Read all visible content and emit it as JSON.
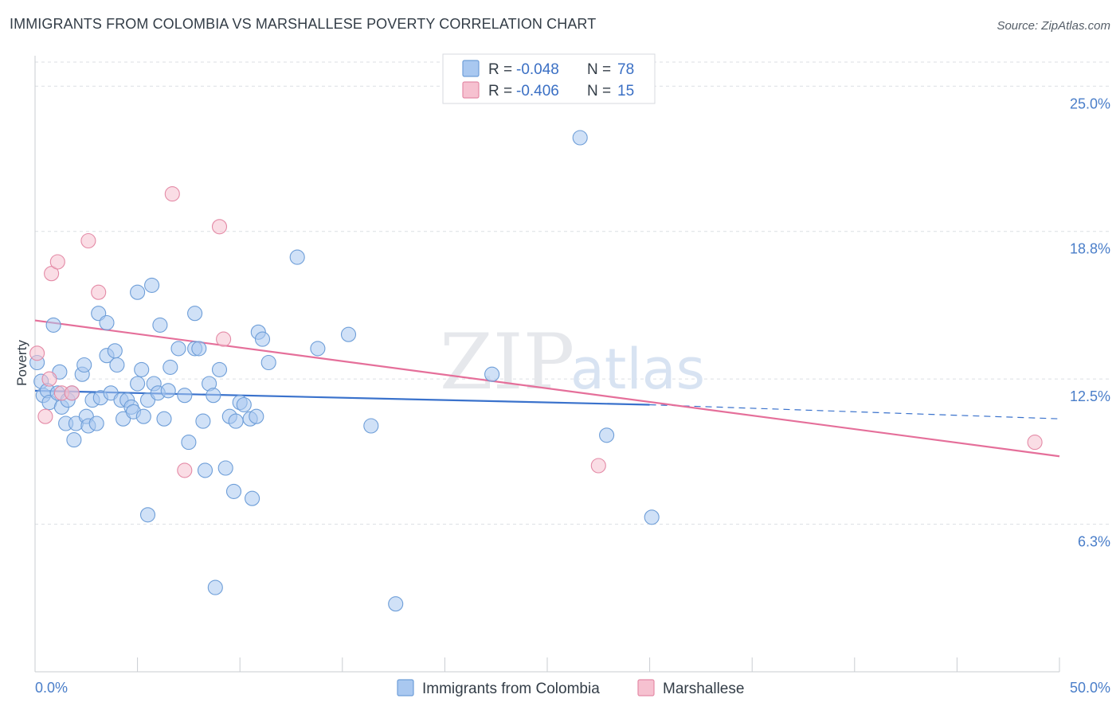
{
  "header": {
    "title": "IMMIGRANTS FROM COLOMBIA VS MARSHALLESE POVERTY CORRELATION CHART",
    "source": "Source: ZipAtlas.com"
  },
  "watermark": {
    "zip": "ZIP",
    "atlas": "atlas"
  },
  "stats": [
    {
      "r_label": "R = ",
      "r": "-0.048",
      "n_label": "N = ",
      "n": "78",
      "color": "#a9c8f0",
      "stroke": "#6e9ed8"
    },
    {
      "r_label": "R = ",
      "r": "-0.406",
      "n_label": "N = ",
      "n": "15",
      "color": "#f6c1d0",
      "stroke": "#e48aa6"
    }
  ],
  "legend": [
    {
      "label": "Immigrants from Colombia",
      "color": "#a9c8f0",
      "stroke": "#6e9ed8"
    },
    {
      "label": "Marshallese",
      "color": "#f6c1d0",
      "stroke": "#e48aa6"
    }
  ],
  "chart_data": {
    "type": "scatter",
    "title": "IMMIGRANTS FROM COLOMBIA VS MARSHALLESE POVERTY CORRELATION CHART",
    "xlabel": "",
    "ylabel": "Poverty",
    "xlim": [
      0,
      50
    ],
    "ylim": [
      0,
      26.3
    ],
    "x_tick_labels": [
      "0.0%",
      "50.0%"
    ],
    "y_ticks": [
      {
        "value": 6.3,
        "label": "6.3%"
      },
      {
        "value": 12.5,
        "label": "12.5%"
      },
      {
        "value": 18.8,
        "label": "18.8%"
      },
      {
        "value": 25.0,
        "label": "25.0%"
      }
    ],
    "grid": true,
    "legend_position": "bottom",
    "series": [
      {
        "name": "Immigrants from Colombia",
        "color": "#a9c8f0",
        "stroke": "#6e9ed8",
        "points": [
          [
            0.1,
            13.2
          ],
          [
            0.3,
            12.4
          ],
          [
            0.4,
            11.8
          ],
          [
            0.6,
            12.0
          ],
          [
            0.7,
            11.5
          ],
          [
            0.9,
            14.8
          ],
          [
            1.1,
            11.9
          ],
          [
            1.2,
            12.8
          ],
          [
            1.3,
            11.3
          ],
          [
            1.5,
            10.6
          ],
          [
            1.6,
            11.6
          ],
          [
            1.8,
            11.9
          ],
          [
            1.9,
            9.9
          ],
          [
            2.0,
            10.6
          ],
          [
            2.3,
            12.7
          ],
          [
            2.4,
            13.1
          ],
          [
            2.5,
            10.9
          ],
          [
            2.6,
            10.5
          ],
          [
            2.8,
            11.6
          ],
          [
            3.0,
            10.6
          ],
          [
            3.1,
            15.3
          ],
          [
            3.2,
            11.7
          ],
          [
            3.5,
            14.9
          ],
          [
            3.5,
            13.5
          ],
          [
            3.7,
            11.9
          ],
          [
            3.9,
            13.7
          ],
          [
            4.0,
            13.1
          ],
          [
            4.2,
            11.6
          ],
          [
            4.3,
            10.8
          ],
          [
            4.5,
            11.6
          ],
          [
            4.7,
            11.3
          ],
          [
            4.8,
            11.1
          ],
          [
            5.0,
            12.3
          ],
          [
            5.0,
            16.2
          ],
          [
            5.2,
            12.9
          ],
          [
            5.3,
            10.9
          ],
          [
            5.5,
            11.6
          ],
          [
            5.5,
            6.7
          ],
          [
            5.7,
            16.5
          ],
          [
            5.8,
            12.3
          ],
          [
            6.0,
            11.9
          ],
          [
            6.1,
            14.8
          ],
          [
            6.3,
            10.8
          ],
          [
            6.5,
            12.0
          ],
          [
            6.6,
            13.0
          ],
          [
            7.0,
            13.8
          ],
          [
            7.3,
            11.8
          ],
          [
            7.5,
            9.8
          ],
          [
            7.8,
            13.8
          ],
          [
            7.8,
            15.3
          ],
          [
            8.0,
            13.8
          ],
          [
            8.2,
            10.7
          ],
          [
            8.3,
            8.6
          ],
          [
            8.5,
            12.3
          ],
          [
            8.7,
            11.8
          ],
          [
            8.8,
            3.6
          ],
          [
            9.0,
            12.9
          ],
          [
            9.3,
            8.7
          ],
          [
            9.5,
            10.9
          ],
          [
            9.7,
            7.7
          ],
          [
            9.8,
            10.7
          ],
          [
            10.0,
            11.5
          ],
          [
            10.2,
            11.4
          ],
          [
            10.5,
            10.8
          ],
          [
            10.6,
            7.4
          ],
          [
            10.8,
            10.9
          ],
          [
            10.9,
            14.5
          ],
          [
            11.1,
            14.2
          ],
          [
            11.4,
            13.2
          ],
          [
            12.8,
            17.7
          ],
          [
            13.8,
            13.8
          ],
          [
            15.3,
            14.4
          ],
          [
            16.4,
            10.5
          ],
          [
            17.6,
            2.9
          ],
          [
            22.3,
            12.7
          ],
          [
            26.6,
            22.8
          ],
          [
            27.9,
            10.1
          ],
          [
            30.1,
            6.6
          ]
        ]
      },
      {
        "name": "Marshallese",
        "color": "#f6c1d0",
        "stroke": "#e48aa6",
        "points": [
          [
            0.1,
            13.6
          ],
          [
            0.5,
            10.9
          ],
          [
            0.7,
            12.5
          ],
          [
            0.8,
            17.0
          ],
          [
            1.1,
            17.5
          ],
          [
            1.3,
            11.9
          ],
          [
            1.8,
            11.9
          ],
          [
            2.6,
            18.4
          ],
          [
            3.1,
            16.2
          ],
          [
            6.7,
            20.4
          ],
          [
            7.3,
            8.6
          ],
          [
            9.0,
            19.0
          ],
          [
            9.2,
            14.2
          ],
          [
            27.5,
            8.8
          ],
          [
            48.8,
            9.8
          ]
        ]
      }
    ],
    "trend_lines": [
      {
        "series": "Immigrants from Colombia",
        "x": [
          0,
          30,
          50
        ],
        "y": [
          12.0,
          11.4,
          10.8
        ],
        "dashed_from_x": 30,
        "color": "#3a72cc"
      },
      {
        "series": "Marshallese",
        "x": [
          0,
          50
        ],
        "y": [
          15.0,
          9.2
        ],
        "color": "#e56f9a"
      }
    ]
  }
}
